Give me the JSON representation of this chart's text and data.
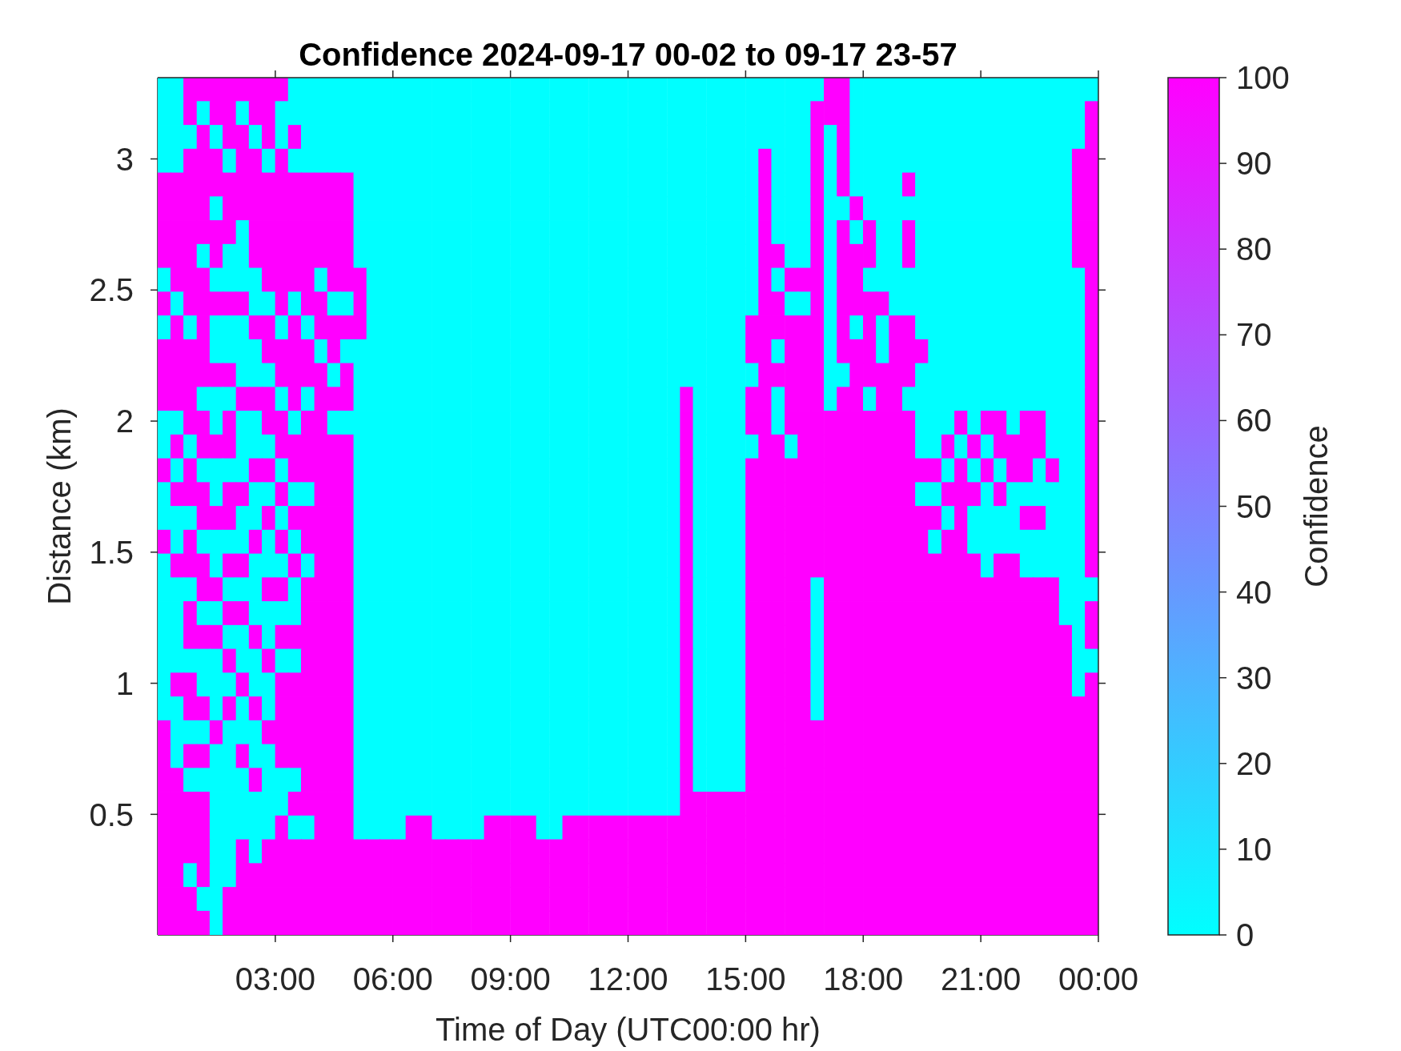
{
  "chart_data": {
    "type": "heatmap",
    "title": "Confidence 2024-09-17 00-02 to 09-17 23-57",
    "xlabel": "Time of Day (UTC00:00 hr)",
    "ylabel": "Distance (km)",
    "clabel": "Confidence",
    "x": [
      0.17,
      0.5,
      0.83,
      1.17,
      1.5,
      1.83,
      2.17,
      2.5,
      2.83,
      3.17,
      3.5,
      3.83,
      4.17,
      4.5,
      4.83,
      5.17,
      5.5,
      5.83,
      6.17,
      6.5,
      6.83,
      7.17,
      7.5,
      7.83,
      8.17,
      8.5,
      8.83,
      9.17,
      9.5,
      9.83,
      10.17,
      10.5,
      10.83,
      11.17,
      11.5,
      11.83,
      12.17,
      12.5,
      12.83,
      13.17,
      13.5,
      13.83,
      14.17,
      14.5,
      14.83,
      15.17,
      15.5,
      15.83,
      16.17,
      16.5,
      16.83,
      17.17,
      17.5,
      17.83,
      18.17,
      18.5,
      18.83,
      19.17,
      19.5,
      19.83,
      20.17,
      20.5,
      20.83,
      21.17,
      21.5,
      21.83,
      22.17,
      22.5,
      22.83,
      23.17,
      23.5,
      23.83
    ],
    "xlim": [
      0,
      24
    ],
    "xticks": [
      {
        "value": 3,
        "label": "03:00"
      },
      {
        "value": 6,
        "label": "06:00"
      },
      {
        "value": 9,
        "label": "09:00"
      },
      {
        "value": 12,
        "label": "12:00"
      },
      {
        "value": 15,
        "label": "15:00"
      },
      {
        "value": 18,
        "label": "18:00"
      },
      {
        "value": 21,
        "label": "21:00"
      },
      {
        "value": 24,
        "label": "00:00"
      }
    ],
    "ylim": [
      0.04,
      3.31
    ],
    "yticks": [
      0.5,
      1,
      1.5,
      2,
      2.5,
      3
    ],
    "clim": [
      0,
      100
    ],
    "cticks": [
      0,
      10,
      20,
      30,
      40,
      50,
      60,
      70,
      80,
      90,
      100
    ],
    "cells": [
      [
        0,
        0,
        100,
        100,
        100,
        100,
        100,
        100,
        100,
        100,
        0,
        0,
        0,
        0,
        0,
        0,
        0,
        0,
        0,
        0,
        0,
        0,
        0,
        0,
        0,
        0,
        0,
        0,
        0,
        0,
        0,
        0,
        0,
        0,
        0,
        0,
        0,
        0,
        0,
        0,
        0,
        0,
        0,
        0,
        0,
        0,
        0,
        0,
        0,
        0,
        0,
        100,
        100,
        0,
        0,
        0,
        0,
        0,
        0,
        0,
        0,
        0,
        0,
        0,
        0,
        0,
        0,
        0,
        0,
        0,
        0,
        0
      ],
      [
        0,
        0,
        100,
        0,
        100,
        100,
        0,
        100,
        100,
        0,
        0,
        0,
        0,
        0,
        0,
        0,
        0,
        0,
        0,
        0,
        0,
        0,
        0,
        0,
        0,
        0,
        0,
        0,
        0,
        0,
        0,
        0,
        0,
        0,
        0,
        0,
        0,
        0,
        0,
        0,
        0,
        0,
        0,
        0,
        0,
        0,
        0,
        0,
        0,
        0,
        100,
        100,
        100,
        0,
        0,
        0,
        0,
        0,
        0,
        0,
        0,
        0,
        0,
        0,
        0,
        0,
        0,
        0,
        0,
        0,
        0,
        100
      ],
      [
        0,
        0,
        0,
        100,
        0,
        100,
        100,
        0,
        100,
        0,
        100,
        0,
        0,
        0,
        0,
        0,
        0,
        0,
        0,
        0,
        0,
        0,
        0,
        0,
        0,
        0,
        0,
        0,
        0,
        0,
        0,
        0,
        0,
        0,
        0,
        0,
        0,
        0,
        0,
        0,
        0,
        0,
        0,
        0,
        0,
        0,
        0,
        0,
        0,
        0,
        100,
        0,
        100,
        0,
        0,
        0,
        0,
        0,
        0,
        0,
        0,
        0,
        0,
        0,
        0,
        0,
        0,
        0,
        0,
        0,
        0,
        100
      ],
      [
        0,
        0,
        100,
        100,
        100,
        0,
        100,
        100,
        0,
        100,
        0,
        0,
        0,
        0,
        0,
        0,
        0,
        0,
        0,
        0,
        0,
        0,
        0,
        0,
        0,
        0,
        0,
        0,
        0,
        0,
        0,
        0,
        0,
        0,
        0,
        0,
        0,
        0,
        0,
        0,
        0,
        0,
        0,
        0,
        0,
        0,
        100,
        0,
        0,
        0,
        100,
        0,
        100,
        0,
        0,
        0,
        0,
        0,
        0,
        0,
        0,
        0,
        0,
        0,
        0,
        0,
        0,
        0,
        0,
        0,
        100,
        100
      ],
      [
        100,
        100,
        100,
        100,
        100,
        100,
        100,
        100,
        100,
        100,
        100,
        100,
        100,
        100,
        100,
        0,
        0,
        0,
        0,
        0,
        0,
        0,
        0,
        0,
        0,
        0,
        0,
        0,
        0,
        0,
        0,
        0,
        0,
        0,
        0,
        0,
        0,
        0,
        0,
        0,
        0,
        0,
        0,
        0,
        0,
        0,
        100,
        0,
        0,
        0,
        100,
        0,
        100,
        0,
        0,
        0,
        0,
        100,
        0,
        0,
        0,
        0,
        0,
        0,
        0,
        0,
        0,
        0,
        0,
        0,
        100,
        100
      ],
      [
        100,
        100,
        100,
        100,
        0,
        100,
        100,
        100,
        100,
        100,
        100,
        100,
        100,
        100,
        100,
        0,
        0,
        0,
        0,
        0,
        0,
        0,
        0,
        0,
        0,
        0,
        0,
        0,
        0,
        0,
        0,
        0,
        0,
        0,
        0,
        0,
        0,
        0,
        0,
        0,
        0,
        0,
        0,
        0,
        0,
        0,
        100,
        0,
        0,
        0,
        100,
        0,
        0,
        100,
        0,
        0,
        0,
        0,
        0,
        0,
        0,
        0,
        0,
        0,
        0,
        0,
        0,
        0,
        0,
        0,
        100,
        100
      ],
      [
        100,
        100,
        100,
        100,
        100,
        100,
        0,
        100,
        100,
        100,
        100,
        100,
        100,
        100,
        100,
        0,
        0,
        0,
        0,
        0,
        0,
        0,
        0,
        0,
        0,
        0,
        0,
        0,
        0,
        0,
        0,
        0,
        0,
        0,
        0,
        0,
        0,
        0,
        0,
        0,
        0,
        0,
        0,
        0,
        0,
        0,
        100,
        0,
        0,
        0,
        100,
        0,
        100,
        0,
        100,
        0,
        0,
        100,
        0,
        0,
        0,
        0,
        0,
        0,
        0,
        0,
        0,
        0,
        0,
        0,
        100,
        100
      ],
      [
        100,
        100,
        100,
        0,
        100,
        0,
        0,
        100,
        100,
        100,
        100,
        100,
        100,
        100,
        100,
        0,
        0,
        0,
        0,
        0,
        0,
        0,
        0,
        0,
        0,
        0,
        0,
        0,
        0,
        0,
        0,
        0,
        0,
        0,
        0,
        0,
        0,
        0,
        0,
        0,
        0,
        0,
        0,
        0,
        0,
        0,
        100,
        100,
        0,
        0,
        100,
        0,
        100,
        100,
        100,
        0,
        0,
        100,
        0,
        0,
        0,
        0,
        0,
        0,
        0,
        0,
        0,
        0,
        0,
        0,
        100,
        100
      ],
      [
        0,
        100,
        100,
        100,
        0,
        0,
        0,
        0,
        100,
        100,
        100,
        100,
        0,
        100,
        100,
        100,
        0,
        0,
        0,
        0,
        0,
        0,
        0,
        0,
        0,
        0,
        0,
        0,
        0,
        0,
        0,
        0,
        0,
        0,
        0,
        0,
        0,
        0,
        0,
        0,
        0,
        0,
        0,
        0,
        0,
        0,
        100,
        0,
        100,
        100,
        100,
        0,
        100,
        100,
        0,
        0,
        0,
        0,
        0,
        0,
        0,
        0,
        0,
        0,
        0,
        0,
        0,
        0,
        0,
        0,
        0,
        100
      ],
      [
        100,
        0,
        100,
        100,
        100,
        100,
        100,
        0,
        0,
        100,
        0,
        100,
        100,
        0,
        0,
        100,
        0,
        0,
        0,
        0,
        0,
        0,
        0,
        0,
        0,
        0,
        0,
        0,
        0,
        0,
        0,
        0,
        0,
        0,
        0,
        0,
        0,
        0,
        0,
        0,
        0,
        0,
        0,
        0,
        0,
        0,
        100,
        100,
        0,
        0,
        100,
        0,
        100,
        100,
        100,
        100,
        0,
        0,
        0,
        0,
        0,
        0,
        0,
        0,
        0,
        0,
        0,
        0,
        0,
        0,
        0,
        100
      ],
      [
        0,
        100,
        0,
        100,
        0,
        0,
        0,
        100,
        100,
        0,
        100,
        0,
        100,
        100,
        100,
        100,
        0,
        0,
        0,
        0,
        0,
        0,
        0,
        0,
        0,
        0,
        0,
        0,
        0,
        0,
        0,
        0,
        0,
        0,
        0,
        0,
        0,
        0,
        0,
        0,
        0,
        0,
        0,
        0,
        0,
        100,
        100,
        100,
        100,
        100,
        100,
        0,
        100,
        0,
        100,
        0,
        100,
        100,
        0,
        0,
        0,
        0,
        0,
        0,
        0,
        0,
        0,
        0,
        0,
        0,
        0,
        100
      ],
      [
        100,
        100,
        100,
        100,
        0,
        0,
        0,
        0,
        100,
        100,
        100,
        100,
        0,
        100,
        0,
        0,
        0,
        0,
        0,
        0,
        0,
        0,
        0,
        0,
        0,
        0,
        0,
        0,
        0,
        0,
        0,
        0,
        0,
        0,
        0,
        0,
        0,
        0,
        0,
        0,
        0,
        0,
        0,
        0,
        0,
        100,
        100,
        0,
        100,
        100,
        100,
        0,
        100,
        100,
        100,
        0,
        100,
        100,
        100,
        0,
        0,
        0,
        0,
        0,
        0,
        0,
        0,
        0,
        0,
        0,
        0,
        100
      ],
      [
        100,
        100,
        100,
        100,
        100,
        100,
        0,
        0,
        0,
        100,
        100,
        100,
        100,
        0,
        100,
        0,
        0,
        0,
        0,
        0,
        0,
        0,
        0,
        0,
        0,
        0,
        0,
        0,
        0,
        0,
        0,
        0,
        0,
        0,
        0,
        0,
        0,
        0,
        0,
        0,
        0,
        0,
        0,
        0,
        0,
        0,
        100,
        100,
        100,
        100,
        100,
        0,
        0,
        100,
        100,
        100,
        100,
        100,
        0,
        0,
        0,
        0,
        0,
        0,
        0,
        0,
        0,
        0,
        0,
        0,
        0,
        100
      ],
      [
        100,
        100,
        100,
        0,
        0,
        0,
        100,
        100,
        100,
        0,
        100,
        0,
        100,
        100,
        100,
        0,
        0,
        0,
        0,
        0,
        0,
        0,
        0,
        0,
        0,
        0,
        0,
        0,
        0,
        0,
        0,
        0,
        0,
        0,
        0,
        0,
        0,
        0,
        0,
        0,
        100,
        0,
        0,
        0,
        0,
        100,
        100,
        0,
        100,
        100,
        100,
        0,
        100,
        100,
        0,
        100,
        100,
        0,
        0,
        0,
        0,
        0,
        0,
        0,
        0,
        0,
        0,
        0,
        0,
        0,
        0,
        100
      ],
      [
        0,
        0,
        100,
        100,
        0,
        100,
        0,
        0,
        100,
        100,
        0,
        100,
        100,
        0,
        0,
        0,
        0,
        0,
        0,
        0,
        0,
        0,
        0,
        0,
        0,
        0,
        0,
        0,
        0,
        0,
        0,
        0,
        0,
        0,
        0,
        0,
        0,
        0,
        0,
        0,
        100,
        0,
        0,
        0,
        0,
        100,
        100,
        0,
        100,
        100,
        100,
        100,
        100,
        100,
        100,
        100,
        100,
        100,
        0,
        0,
        0,
        100,
        0,
        100,
        100,
        0,
        100,
        100,
        0,
        0,
        0,
        100
      ],
      [
        0,
        100,
        0,
        100,
        100,
        100,
        0,
        0,
        0,
        100,
        100,
        100,
        100,
        100,
        100,
        0,
        0,
        0,
        0,
        0,
        0,
        0,
        0,
        0,
        0,
        0,
        0,
        0,
        0,
        0,
        0,
        0,
        0,
        0,
        0,
        0,
        0,
        0,
        0,
        0,
        100,
        0,
        0,
        0,
        0,
        0,
        100,
        100,
        0,
        100,
        100,
        100,
        100,
        100,
        100,
        100,
        100,
        100,
        0,
        0,
        100,
        0,
        100,
        0,
        100,
        100,
        100,
        100,
        0,
        0,
        0,
        100
      ],
      [
        100,
        0,
        100,
        0,
        0,
        0,
        0,
        100,
        100,
        0,
        100,
        100,
        100,
        100,
        100,
        0,
        0,
        0,
        0,
        0,
        0,
        0,
        0,
        0,
        0,
        0,
        0,
        0,
        0,
        0,
        0,
        0,
        0,
        0,
        0,
        0,
        0,
        0,
        0,
        0,
        100,
        0,
        0,
        0,
        0,
        100,
        100,
        100,
        100,
        100,
        100,
        100,
        100,
        100,
        100,
        100,
        100,
        100,
        100,
        100,
        0,
        100,
        0,
        100,
        0,
        100,
        100,
        0,
        100,
        0,
        0,
        100
      ],
      [
        0,
        100,
        100,
        100,
        0,
        100,
        100,
        0,
        0,
        100,
        0,
        0,
        100,
        100,
        100,
        0,
        0,
        0,
        0,
        0,
        0,
        0,
        0,
        0,
        0,
        0,
        0,
        0,
        0,
        0,
        0,
        0,
        0,
        0,
        0,
        0,
        0,
        0,
        0,
        0,
        100,
        0,
        0,
        0,
        0,
        100,
        100,
        100,
        100,
        100,
        100,
        100,
        100,
        100,
        100,
        100,
        100,
        100,
        0,
        0,
        100,
        100,
        100,
        0,
        100,
        0,
        0,
        0,
        0,
        0,
        0,
        100
      ],
      [
        0,
        0,
        0,
        100,
        100,
        100,
        0,
        0,
        100,
        0,
        100,
        100,
        100,
        100,
        100,
        0,
        0,
        0,
        0,
        0,
        0,
        0,
        0,
        0,
        0,
        0,
        0,
        0,
        0,
        0,
        0,
        0,
        0,
        0,
        0,
        0,
        0,
        0,
        0,
        0,
        100,
        0,
        0,
        0,
        0,
        100,
        100,
        100,
        100,
        100,
        100,
        100,
        100,
        100,
        100,
        100,
        100,
        100,
        100,
        100,
        0,
        100,
        0,
        0,
        0,
        0,
        100,
        100,
        0,
        0,
        0,
        100
      ],
      [
        100,
        0,
        100,
        0,
        0,
        0,
        0,
        100,
        0,
        100,
        0,
        100,
        100,
        100,
        100,
        0,
        0,
        0,
        0,
        0,
        0,
        0,
        0,
        0,
        0,
        0,
        0,
        0,
        0,
        0,
        0,
        0,
        0,
        0,
        0,
        0,
        0,
        0,
        0,
        0,
        100,
        0,
        0,
        0,
        0,
        100,
        100,
        100,
        100,
        100,
        100,
        100,
        100,
        100,
        100,
        100,
        100,
        100,
        100,
        0,
        100,
        100,
        0,
        0,
        0,
        0,
        0,
        0,
        0,
        0,
        0,
        100
      ],
      [
        0,
        100,
        100,
        100,
        0,
        100,
        100,
        0,
        0,
        0,
        100,
        0,
        100,
        100,
        100,
        0,
        0,
        0,
        0,
        0,
        0,
        0,
        0,
        0,
        0,
        0,
        0,
        0,
        0,
        0,
        0,
        0,
        0,
        0,
        0,
        0,
        0,
        0,
        0,
        0,
        100,
        0,
        0,
        0,
        0,
        100,
        100,
        100,
        100,
        100,
        100,
        100,
        100,
        100,
        100,
        100,
        100,
        100,
        100,
        100,
        100,
        100,
        100,
        0,
        100,
        100,
        0,
        0,
        0,
        0,
        0,
        100
      ],
      [
        0,
        0,
        0,
        100,
        100,
        0,
        0,
        0,
        100,
        100,
        0,
        100,
        100,
        100,
        100,
        0,
        0,
        0,
        0,
        0,
        0,
        0,
        0,
        0,
        0,
        0,
        0,
        0,
        0,
        0,
        0,
        0,
        0,
        0,
        0,
        0,
        0,
        0,
        0,
        0,
        100,
        0,
        0,
        0,
        0,
        100,
        100,
        100,
        100,
        100,
        0,
        100,
        100,
        100,
        100,
        100,
        100,
        100,
        100,
        100,
        100,
        100,
        100,
        100,
        100,
        100,
        100,
        100,
        100,
        0,
        0,
        0
      ],
      [
        0,
        0,
        100,
        0,
        0,
        100,
        100,
        0,
        0,
        0,
        0,
        100,
        100,
        100,
        100,
        0,
        0,
        0,
        0,
        0,
        0,
        0,
        0,
        0,
        0,
        0,
        0,
        0,
        0,
        0,
        0,
        0,
        0,
        0,
        0,
        0,
        0,
        0,
        0,
        0,
        100,
        0,
        0,
        0,
        0,
        100,
        100,
        100,
        100,
        100,
        0,
        100,
        100,
        100,
        100,
        100,
        100,
        100,
        100,
        100,
        100,
        100,
        100,
        100,
        100,
        100,
        100,
        100,
        100,
        0,
        0,
        100
      ],
      [
        0,
        0,
        100,
        100,
        100,
        0,
        0,
        100,
        0,
        100,
        100,
        100,
        100,
        100,
        100,
        0,
        0,
        0,
        0,
        0,
        0,
        0,
        0,
        0,
        0,
        0,
        0,
        0,
        0,
        0,
        0,
        0,
        0,
        0,
        0,
        0,
        0,
        0,
        0,
        0,
        100,
        0,
        0,
        0,
        0,
        100,
        100,
        100,
        100,
        100,
        0,
        100,
        100,
        100,
        100,
        100,
        100,
        100,
        100,
        100,
        100,
        100,
        100,
        100,
        100,
        100,
        100,
        100,
        100,
        100,
        0,
        100
      ],
      [
        0,
        0,
        0,
        0,
        0,
        100,
        0,
        0,
        100,
        0,
        0,
        100,
        100,
        100,
        100,
        0,
        0,
        0,
        0,
        0,
        0,
        0,
        0,
        0,
        0,
        0,
        0,
        0,
        0,
        0,
        0,
        0,
        0,
        0,
        0,
        0,
        0,
        0,
        0,
        0,
        100,
        0,
        0,
        0,
        0,
        100,
        100,
        100,
        100,
        100,
        0,
        100,
        100,
        100,
        100,
        100,
        100,
        100,
        100,
        100,
        100,
        100,
        100,
        100,
        100,
        100,
        100,
        100,
        100,
        100,
        0,
        0
      ],
      [
        0,
        100,
        100,
        0,
        0,
        0,
        100,
        0,
        0,
        100,
        100,
        100,
        100,
        100,
        100,
        0,
        0,
        0,
        0,
        0,
        0,
        0,
        0,
        0,
        0,
        0,
        0,
        0,
        0,
        0,
        0,
        0,
        0,
        0,
        0,
        0,
        0,
        0,
        0,
        0,
        100,
        0,
        0,
        0,
        0,
        100,
        100,
        100,
        100,
        100,
        0,
        100,
        100,
        100,
        100,
        100,
        100,
        100,
        100,
        100,
        100,
        100,
        100,
        100,
        100,
        100,
        100,
        100,
        100,
        100,
        0,
        100
      ],
      [
        0,
        0,
        100,
        100,
        0,
        100,
        0,
        100,
        0,
        100,
        100,
        100,
        100,
        100,
        100,
        0,
        0,
        0,
        0,
        0,
        0,
        0,
        0,
        0,
        0,
        0,
        0,
        0,
        0,
        0,
        0,
        0,
        0,
        0,
        0,
        0,
        0,
        0,
        0,
        0,
        100,
        0,
        0,
        0,
        0,
        100,
        100,
        100,
        100,
        100,
        0,
        100,
        100,
        100,
        100,
        100,
        100,
        100,
        100,
        100,
        100,
        100,
        100,
        100,
        100,
        100,
        100,
        100,
        100,
        100,
        100,
        100
      ],
      [
        100,
        0,
        0,
        0,
        100,
        0,
        0,
        0,
        100,
        100,
        100,
        100,
        100,
        100,
        100,
        0,
        0,
        0,
        0,
        0,
        0,
        0,
        0,
        0,
        0,
        0,
        0,
        0,
        0,
        0,
        0,
        0,
        0,
        0,
        0,
        0,
        0,
        0,
        0,
        0,
        100,
        0,
        0,
        0,
        0,
        100,
        100,
        100,
        100,
        100,
        100,
        100,
        100,
        100,
        100,
        100,
        100,
        100,
        100,
        100,
        100,
        100,
        100,
        100,
        100,
        100,
        100,
        100,
        100,
        100,
        100,
        100
      ],
      [
        100,
        0,
        100,
        100,
        0,
        0,
        100,
        0,
        0,
        100,
        100,
        100,
        100,
        100,
        100,
        0,
        0,
        0,
        0,
        0,
        0,
        0,
        0,
        0,
        0,
        0,
        0,
        0,
        0,
        0,
        0,
        0,
        0,
        0,
        0,
        0,
        0,
        0,
        0,
        0,
        100,
        0,
        0,
        0,
        0,
        100,
        100,
        100,
        100,
        100,
        100,
        100,
        100,
        100,
        100,
        100,
        100,
        100,
        100,
        100,
        100,
        100,
        100,
        100,
        100,
        100,
        100,
        100,
        100,
        100,
        100,
        100
      ],
      [
        100,
        100,
        0,
        0,
        0,
        0,
        0,
        100,
        0,
        0,
        0,
        100,
        100,
        100,
        100,
        0,
        0,
        0,
        0,
        0,
        0,
        0,
        0,
        0,
        0,
        0,
        0,
        0,
        0,
        0,
        0,
        0,
        0,
        0,
        0,
        0,
        0,
        0,
        0,
        0,
        100,
        0,
        0,
        0,
        0,
        100,
        100,
        100,
        100,
        100,
        100,
        100,
        100,
        100,
        100,
        100,
        100,
        100,
        100,
        100,
        100,
        100,
        100,
        100,
        100,
        100,
        100,
        100,
        100,
        100,
        100,
        100
      ],
      [
        100,
        100,
        100,
        100,
        0,
        0,
        0,
        0,
        0,
        0,
        100,
        100,
        100,
        100,
        100,
        0,
        0,
        0,
        0,
        0,
        0,
        0,
        0,
        0,
        0,
        0,
        0,
        0,
        0,
        0,
        0,
        0,
        0,
        0,
        0,
        0,
        0,
        0,
        0,
        0,
        100,
        100,
        100,
        100,
        100,
        100,
        100,
        100,
        100,
        100,
        100,
        100,
        100,
        100,
        100,
        100,
        100,
        100,
        100,
        100,
        100,
        100,
        100,
        100,
        100,
        100,
        100,
        100,
        100,
        100,
        100,
        100
      ],
      [
        100,
        100,
        100,
        100,
        0,
        0,
        0,
        0,
        0,
        100,
        0,
        0,
        100,
        100,
        100,
        0,
        0,
        0,
        0,
        100,
        100,
        0,
        0,
        0,
        0,
        100,
        100,
        100,
        100,
        0,
        0,
        100,
        100,
        100,
        100,
        100,
        100,
        100,
        100,
        100,
        100,
        100,
        100,
        100,
        100,
        100,
        100,
        100,
        100,
        100,
        100,
        100,
        100,
        100,
        100,
        100,
        100,
        100,
        100,
        100,
        100,
        100,
        100,
        100,
        100,
        100,
        100,
        100,
        100,
        100,
        100,
        100
      ],
      [
        100,
        100,
        100,
        100,
        0,
        0,
        100,
        0,
        100,
        100,
        100,
        100,
        100,
        100,
        100,
        100,
        100,
        100,
        100,
        100,
        100,
        100,
        100,
        100,
        100,
        100,
        100,
        100,
        100,
        100,
        100,
        100,
        100,
        100,
        100,
        100,
        100,
        100,
        100,
        100,
        100,
        100,
        100,
        100,
        100,
        100,
        100,
        100,
        100,
        100,
        100,
        100,
        100,
        100,
        100,
        100,
        100,
        100,
        100,
        100,
        100,
        100,
        100,
        100,
        100,
        100,
        100,
        100,
        100,
        100,
        100,
        100
      ],
      [
        100,
        100,
        0,
        100,
        0,
        0,
        100,
        100,
        100,
        100,
        100,
        100,
        100,
        100,
        100,
        100,
        100,
        100,
        100,
        100,
        100,
        100,
        100,
        100,
        100,
        100,
        100,
        100,
        100,
        100,
        100,
        100,
        100,
        100,
        100,
        100,
        100,
        100,
        100,
        100,
        100,
        100,
        100,
        100,
        100,
        100,
        100,
        100,
        100,
        100,
        100,
        100,
        100,
        100,
        100,
        100,
        100,
        100,
        100,
        100,
        100,
        100,
        100,
        100,
        100,
        100,
        100,
        100,
        100,
        100,
        100,
        100
      ],
      [
        100,
        100,
        100,
        0,
        0,
        100,
        100,
        100,
        100,
        100,
        100,
        100,
        100,
        100,
        100,
        100,
        100,
        100,
        100,
        100,
        100,
        100,
        100,
        100,
        100,
        100,
        100,
        100,
        100,
        100,
        100,
        100,
        100,
        100,
        100,
        100,
        100,
        100,
        100,
        100,
        100,
        100,
        100,
        100,
        100,
        100,
        100,
        100,
        100,
        100,
        100,
        100,
        100,
        100,
        100,
        100,
        100,
        100,
        100,
        100,
        100,
        100,
        100,
        100,
        100,
        100,
        100,
        100,
        100,
        100,
        100,
        100
      ],
      [
        100,
        100,
        100,
        100,
        0,
        100,
        100,
        100,
        100,
        100,
        100,
        100,
        100,
        100,
        100,
        100,
        100,
        100,
        100,
        100,
        100,
        100,
        100,
        100,
        100,
        100,
        100,
        100,
        100,
        100,
        100,
        100,
        100,
        100,
        100,
        100,
        100,
        100,
        100,
        100,
        100,
        100,
        100,
        100,
        100,
        100,
        100,
        100,
        100,
        100,
        100,
        100,
        100,
        100,
        100,
        100,
        100,
        100,
        100,
        100,
        100,
        100,
        100,
        100,
        100,
        100,
        100,
        100,
        100,
        100,
        100,
        100
      ]
    ]
  }
}
